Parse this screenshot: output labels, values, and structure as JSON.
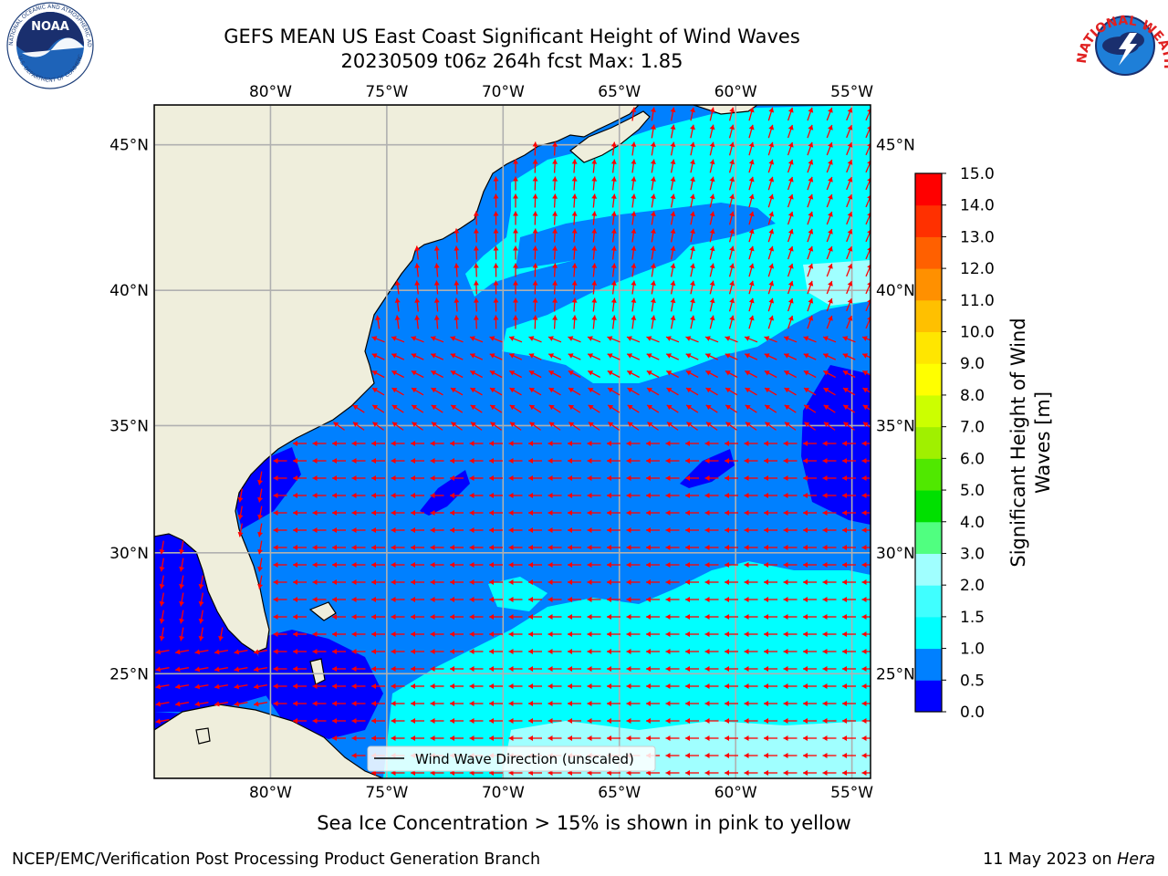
{
  "title_line1": "GEFS MEAN US East Coast Significant Height of Wind Waves",
  "title_line2": "20230509 t06z 264h fcst   Max: 1.85",
  "subtitle": "Sea Ice Concentration > 15% is shown in pink to yellow",
  "footer_left": "NCEP/EMC/Verification Post Processing Product Generation Branch",
  "footer_right_date": "11 May 2023 on ",
  "footer_right_machine": "Hera",
  "legend_label": "Wind Wave Direction (unscaled)",
  "colorbar_label_line1": "Significant Height of Wind",
  "colorbar_label_line2": "Waves [m]",
  "logo_left_text": "NOAA",
  "logo_left_ring": "NATIONAL OCEANIC AND ATMOSPHERIC ADMINISTRATION",
  "logo_left_ring_bottom": "U.S. DEPARTMENT OF COMMERCE",
  "logo_right_ring": "NATIONAL WEATHER SERVICE",
  "map": {
    "lon_range": [
      -85,
      -54.2
    ],
    "lat_range": [
      20.5,
      46.3
    ],
    "lon_ticks": [
      {
        "value": -80,
        "label": "80°W"
      },
      {
        "value": -75,
        "label": "75°W"
      },
      {
        "value": -70,
        "label": "70°W"
      },
      {
        "value": -65,
        "label": "65°W"
      },
      {
        "value": -60,
        "label": "60°W"
      },
      {
        "value": -55,
        "label": "55°W"
      }
    ],
    "lat_ticks": [
      {
        "value": 45,
        "label": "45°N"
      },
      {
        "value": 40,
        "label": "40°N"
      },
      {
        "value": 35,
        "label": "35°N"
      },
      {
        "value": 30,
        "label": "30°N"
      },
      {
        "value": 25,
        "label": "25°N"
      }
    ],
    "grid": true
  },
  "colorbar": {
    "levels": [
      "0.0",
      "0.5",
      "1.0",
      "1.5",
      "2.0",
      "3.0",
      "4.0",
      "5.0",
      "6.0",
      "7.0",
      "8.0",
      "9.0",
      "10.0",
      "11.0",
      "12.0",
      "13.0",
      "14.0",
      "15.0"
    ],
    "colors": [
      "#0000ff",
      "#0080ff",
      "#00ffff",
      "#40ffff",
      "#a0ffff",
      "#50ff80",
      "#00e000",
      "#50e800",
      "#a0f000",
      "#ccff00",
      "#ffff00",
      "#ffe600",
      "#ffc000",
      "#ff9000",
      "#ff6000",
      "#ff3000",
      "#ff0000"
    ]
  },
  "colors": {
    "land": "#efeedc",
    "arrow": "#ff0000",
    "grid": "#b0b0b0",
    "coast": "#000000",
    "noaa_blue": "#1e63b8",
    "noaa_navy": "#1a2f6e"
  }
}
